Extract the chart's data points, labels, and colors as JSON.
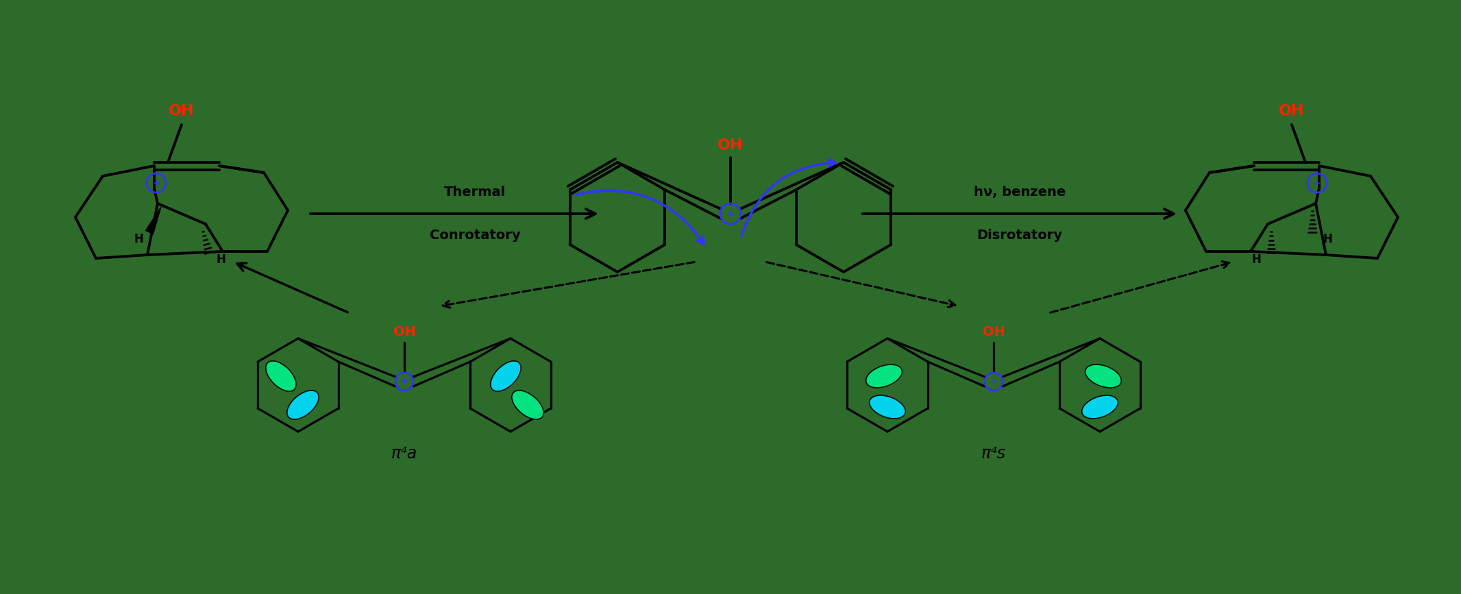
{
  "bg_color": "#2d6b2a",
  "oh_color": "#ff2200",
  "plus_color": "#3333ff",
  "arrow_color": "#3333ff",
  "orbital_green": "#00ee88",
  "orbital_cyan": "#00ddff",
  "thermal_label": [
    "Thermal",
    "Conrotatory"
  ],
  "photo_label": [
    "hν, benzene",
    "Disrotatory"
  ],
  "pi4a_label": "π⁴a",
  "pi4s_label": "π⁴s",
  "fig_width": 21.32,
  "fig_height": 8.67
}
